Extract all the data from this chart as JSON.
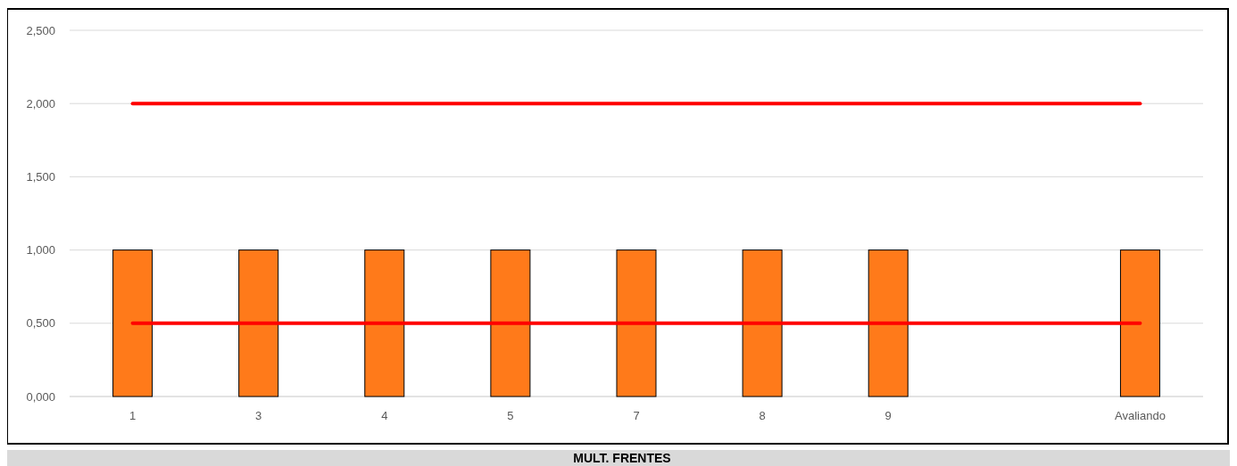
{
  "chart_data": {
    "type": "bar",
    "title": "MULT. FRENTES",
    "categories": [
      "1",
      "3",
      "4",
      "5",
      "7",
      "8",
      "9",
      null,
      "Avaliando"
    ],
    "series": [
      {
        "color": "#ff7a1a",
        "values": [
          1,
          1,
          1,
          1,
          1,
          1,
          1,
          null,
          1
        ]
      },
      {
        "type": "line",
        "color": "#ff0000",
        "values": [
          2,
          2,
          2,
          2,
          2,
          2,
          2,
          2,
          2
        ]
      },
      {
        "type": "line",
        "color": "#ff0000",
        "values": [
          0.5,
          0.5,
          0.5,
          0.5,
          0.5,
          0.5,
          0.5,
          0.5,
          0.5
        ]
      }
    ],
    "ylim": [
      0,
      2.5
    ],
    "yticks": [
      {
        "value": 0,
        "label": "0,000"
      },
      {
        "value": 0.5,
        "label": "0,500"
      },
      {
        "value": 1,
        "label": "1,000"
      },
      {
        "value": 1.5,
        "label": "1,500"
      },
      {
        "value": 2,
        "label": "2,000"
      },
      {
        "value": 2.5,
        "label": "2,500"
      }
    ],
    "grid": "y"
  }
}
